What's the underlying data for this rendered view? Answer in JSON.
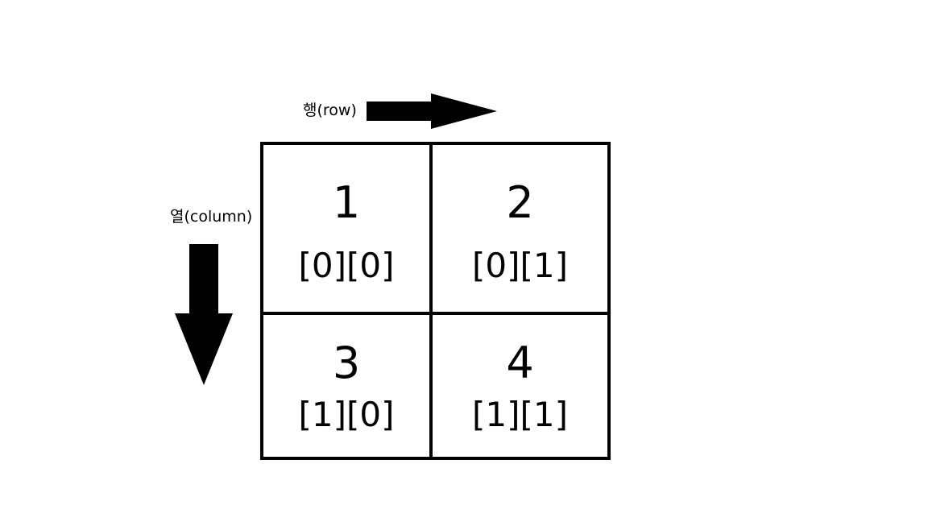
{
  "labels": {
    "row": "행(row)",
    "column": "열(column)"
  },
  "cells": [
    {
      "number": "1",
      "index": "[0][0]"
    },
    {
      "number": "2",
      "index": "[0][1]"
    },
    {
      "number": "3",
      "index": "[1][0]"
    },
    {
      "number": "4",
      "index": "[1][1]"
    }
  ],
  "icons": {
    "row_arrow": "arrow-right-icon",
    "column_arrow": "arrow-down-icon"
  },
  "colors": {
    "line": "#000000",
    "background": "#ffffff"
  }
}
